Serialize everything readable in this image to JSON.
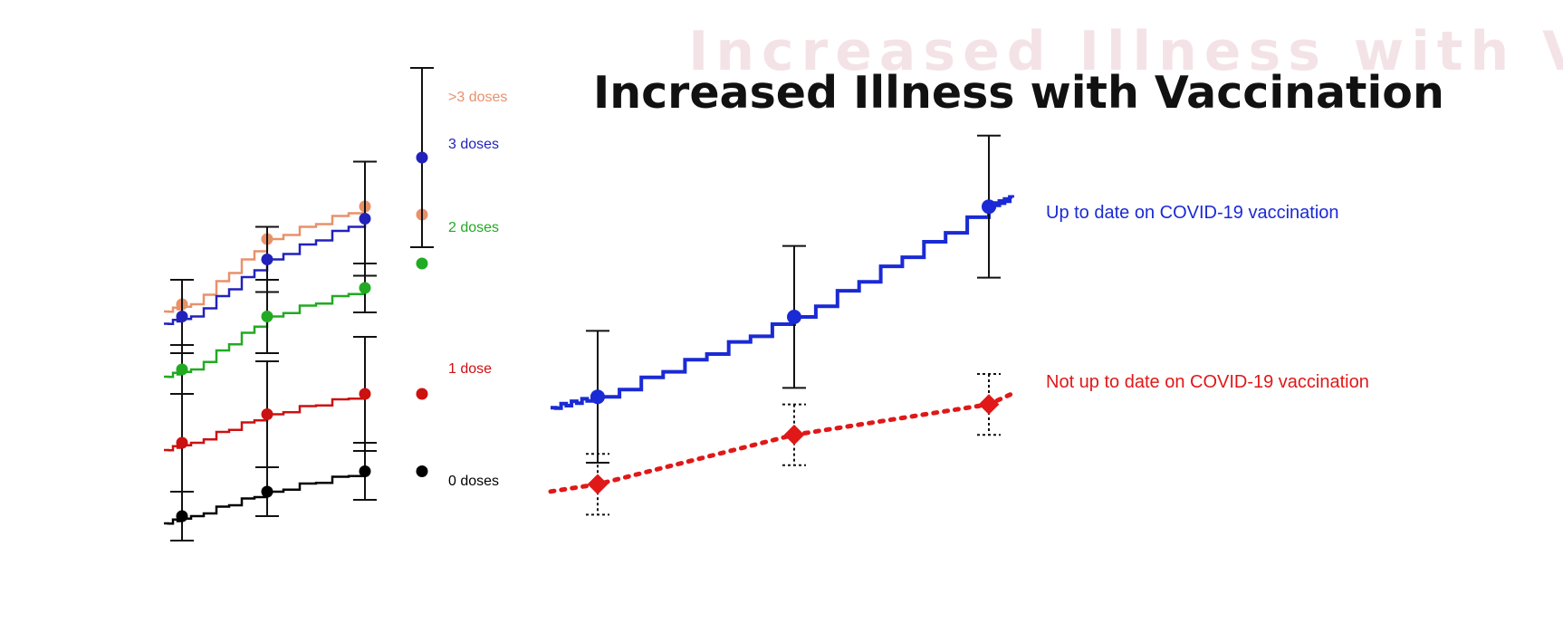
{
  "title": "Increased Illness with Vaccination",
  "colors": {
    "over3": "#e8916b",
    "three": "#2222bb",
    "two": "#22aa22",
    "one": "#cc1111",
    "zero": "#000000",
    "upToDate": "#1a2ad4",
    "notUpToDate": "#e01818",
    "errorbar": "#111111"
  },
  "chart_data": [
    {
      "type": "line",
      "title": "",
      "xlabel": "",
      "ylabel": "",
      "legend_placement": "right",
      "grid": false,
      "series": [
        {
          "name": ">3 doses",
          "color_key": "over3",
          "style": "step",
          "points_x": [
            1,
            2,
            3,
            4
          ],
          "points_y": [
            7.2,
            8.8,
            9.6,
            9.4
          ],
          "err": [
            0,
            0,
            0,
            0
          ]
        },
        {
          "name": "3 doses",
          "color_key": "three",
          "style": "step",
          "points_x": [
            1,
            2,
            3,
            4
          ],
          "points_y": [
            6.9,
            8.3,
            9.3,
            10.8
          ],
          "err": [
            0.9,
            0.8,
            1.4,
            2.2
          ]
        },
        {
          "name": "2 doses",
          "color_key": "two",
          "style": "step",
          "points_x": [
            1,
            2,
            3,
            4
          ],
          "points_y": [
            5.6,
            6.9,
            7.6,
            8.2
          ],
          "err": [
            0.6,
            0.9,
            0.6,
            0
          ]
        },
        {
          "name": "1 dose",
          "color_key": "one",
          "style": "step",
          "points_x": [
            1,
            2,
            3,
            4
          ],
          "points_y": [
            3.8,
            4.5,
            5.0,
            5.0
          ],
          "err": [
            1.2,
            1.3,
            1.4,
            0
          ]
        },
        {
          "name": "0 doses",
          "color_key": "zero",
          "style": "step",
          "points_x": [
            1,
            2,
            3,
            4
          ],
          "points_y": [
            2.0,
            2.6,
            3.1,
            3.1
          ],
          "err": [
            0.6,
            0.6,
            0.7,
            0
          ]
        }
      ]
    },
    {
      "type": "line",
      "title": "",
      "xlabel": "",
      "ylabel": "",
      "legend_placement": "right",
      "grid": false,
      "series": [
        {
          "name": "Up to date on COVID-19 vaccination",
          "color_key": "upToDate",
          "style": "step",
          "points_x": [
            1,
            2,
            3
          ],
          "points_y": [
            2.9,
            5.0,
            7.9
          ],
          "err": [
            1.3,
            1.4,
            1.4
          ]
        },
        {
          "name": "Not up to date on COVID-19 vaccination",
          "color_key": "notUpToDate",
          "style": "dotted",
          "points_x": [
            1,
            2,
            3
          ],
          "points_y": [
            0.6,
            1.9,
            2.7
          ],
          "err": [
            0.6,
            0.6,
            0.6
          ]
        }
      ]
    }
  ]
}
